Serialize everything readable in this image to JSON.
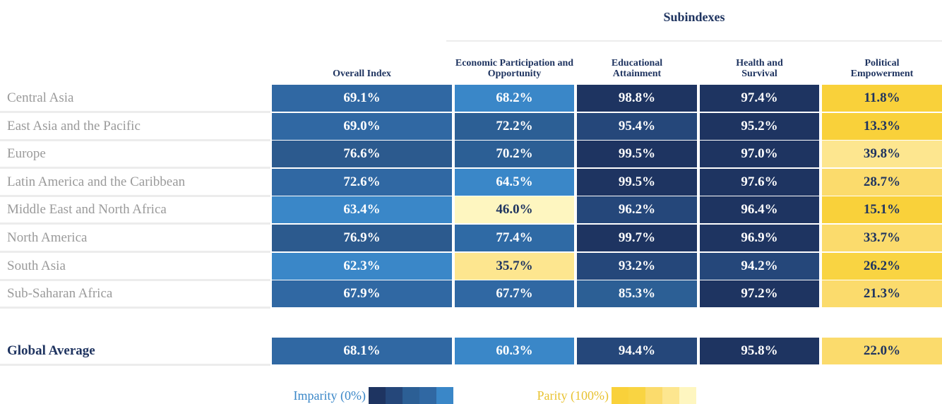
{
  "header": {
    "title": "Subindexes"
  },
  "columns": [
    "Overall Index",
    "Economic Participation and Opportunity",
    "Educational Attainment",
    "Health and Survival",
    "Political Empowerment"
  ],
  "rows": [
    {
      "label": "Central Asia",
      "cells": [
        "69.1%",
        "68.2%",
        "98.8%",
        "97.4%",
        "11.8%"
      ],
      "colors": [
        "#3068a3",
        "#3a87c8",
        "#1e3461",
        "#1e3461",
        "#f9d13a"
      ]
    },
    {
      "label": "East Asia and the Pacific",
      "cells": [
        "69.0%",
        "72.2%",
        "95.4%",
        "95.2%",
        "13.3%"
      ],
      "colors": [
        "#3068a3",
        "#2c5f95",
        "#25477a",
        "#1e3461",
        "#f9d13a"
      ]
    },
    {
      "label": "Europe",
      "cells": [
        "76.6%",
        "70.2%",
        "99.5%",
        "97.0%",
        "39.8%"
      ],
      "colors": [
        "#2c5a8e",
        "#2c5f95",
        "#1e3461",
        "#1e3461",
        "#fde68f"
      ]
    },
    {
      "label": "Latin America and the Caribbean",
      "cells": [
        "72.6%",
        "64.5%",
        "99.5%",
        "97.6%",
        "28.7%"
      ],
      "colors": [
        "#3068a3",
        "#3a87c8",
        "#1e3461",
        "#1e3461",
        "#fbdb6c"
      ]
    },
    {
      "label": "Middle East and North Africa",
      "cells": [
        "63.4%",
        "46.0%",
        "96.2%",
        "96.4%",
        "15.1%"
      ],
      "colors": [
        "#3a87c8",
        "#fef6c0",
        "#25477a",
        "#1e3461",
        "#f9d13a"
      ]
    },
    {
      "label": "North America",
      "cells": [
        "76.9%",
        "77.4%",
        "99.7%",
        "96.9%",
        "33.7%"
      ],
      "colors": [
        "#2c5a8e",
        "#2f6aa5",
        "#1e3461",
        "#1e3461",
        "#fbdb6c"
      ]
    },
    {
      "label": "South Asia",
      "cells": [
        "62.3%",
        "35.7%",
        "93.2%",
        "94.2%",
        "26.2%"
      ],
      "colors": [
        "#3a87c8",
        "#fde68f",
        "#25477a",
        "#25477a",
        "#f9d442"
      ]
    },
    {
      "label": "Sub-Saharan Africa",
      "cells": [
        "67.9%",
        "67.7%",
        "85.3%",
        "97.2%",
        "21.3%"
      ],
      "colors": [
        "#3068a3",
        "#3068a3",
        "#2c5f95",
        "#1e3461",
        "#fbdb6c"
      ]
    }
  ],
  "global": {
    "label": "Global Average",
    "cells": [
      "68.1%",
      "60.3%",
      "94.4%",
      "95.8%",
      "22.0%"
    ],
    "colors": [
      "#3068a3",
      "#3a87c8",
      "#25477a",
      "#1e3461",
      "#fbdb6c"
    ]
  },
  "legend": {
    "imparity": {
      "label": "Imparity (0%)",
      "color": "#3a87c8",
      "colors": [
        "#1e3461",
        "#25477a",
        "#2c5f95",
        "#3068a3",
        "#3a87c8"
      ]
    },
    "parity": {
      "label": "Parity (100%)",
      "color": "#e8c230",
      "colors": [
        "#f9d13a",
        "#f9d442",
        "#fbdb6c",
        "#fde68f",
        "#fef6c0"
      ]
    }
  }
}
